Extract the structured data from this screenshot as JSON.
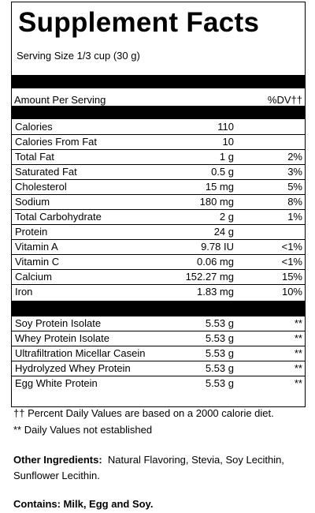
{
  "header": {
    "title": "Supplement Facts",
    "serving_size": "Serving Size 1/3 cup (30 g)"
  },
  "table": {
    "columns": [
      "Amount Per Serving",
      "%DV††"
    ],
    "nutrients": [
      [
        "Calories",
        "110"
      ],
      [
        "Calories From Fat",
        "10"
      ],
      [
        "Total Fat",
        "1 g",
        "2%"
      ],
      [
        "Saturated Fat",
        "0.5 g",
        "3%"
      ],
      [
        "Cholesterol",
        "15 mg",
        "5%"
      ],
      [
        "Sodium",
        "180 mg",
        "8%"
      ],
      [
        "Total Carbohydrate",
        "2 g",
        "1%"
      ],
      [
        "Protein",
        "24 g"
      ],
      [
        "Vitamin A",
        "9.78 IU",
        "<1%"
      ],
      [
        "Vitamin C",
        "0.06 mg",
        "<1%"
      ],
      [
        "Calcium",
        "152.27 mg",
        "15%"
      ],
      [
        "Iron",
        "1.83 mg",
        "10%"
      ]
    ],
    "proteins": [
      [
        "Soy Protein Isolate",
        "5.53 g",
        "**"
      ],
      [
        "Whey Protein Isolate",
        "5.53 g",
        "**"
      ],
      [
        "Ultrafiltration Micellar Casein",
        "5.53 g",
        "**"
      ],
      [
        "Hydrolyzed Whey Protein",
        "5.53 g",
        "**"
      ],
      [
        "Egg White Protein",
        "5.53 g",
        "**"
      ]
    ]
  },
  "footnotes": [
    "†† Percent Daily Values are based on a 2000 calorie diet.",
    "** Daily Values not established"
  ],
  "other_ingredients": {
    "label": "Other Ingredients:",
    "text": "Natural Flavoring, Stevia, Soy Lecithin, Sunflower Lecithin."
  },
  "contains": "Contains: Milk, Egg and Soy."
}
